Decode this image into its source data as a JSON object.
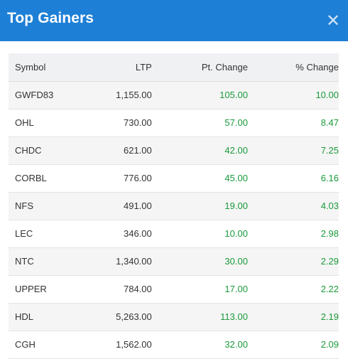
{
  "dialog": {
    "title": "Top Gainers",
    "close_icon": "close-icon",
    "accent_color": "#1e7fd6",
    "gain_color": "#1a9a3a"
  },
  "table": {
    "headers": {
      "symbol": "Symbol",
      "ltp": "LTP",
      "pt_change": "Pt. Change",
      "pct_change": "% Change"
    },
    "rows": [
      {
        "symbol": "GWFD83",
        "ltp": "1,155.00",
        "pt_change": "105.00",
        "pct_change": "10.00"
      },
      {
        "symbol": "OHL",
        "ltp": "730.00",
        "pt_change": "57.00",
        "pct_change": "8.47"
      },
      {
        "symbol": "CHDC",
        "ltp": "621.00",
        "pt_change": "42.00",
        "pct_change": "7.25"
      },
      {
        "symbol": "CORBL",
        "ltp": "776.00",
        "pt_change": "45.00",
        "pct_change": "6.16"
      },
      {
        "symbol": "NFS",
        "ltp": "491.00",
        "pt_change": "19.00",
        "pct_change": "4.03"
      },
      {
        "symbol": "LEC",
        "ltp": "346.00",
        "pt_change": "10.00",
        "pct_change": "2.98"
      },
      {
        "symbol": "NTC",
        "ltp": "1,340.00",
        "pt_change": "30.00",
        "pct_change": "2.29"
      },
      {
        "symbol": "UPPER",
        "ltp": "784.00",
        "pt_change": "17.00",
        "pct_change": "2.22"
      },
      {
        "symbol": "HDL",
        "ltp": "5,263.00",
        "pt_change": "113.00",
        "pct_change": "2.19"
      },
      {
        "symbol": "CGH",
        "ltp": "1,562.00",
        "pt_change": "32.00",
        "pct_change": "2.09"
      }
    ]
  }
}
